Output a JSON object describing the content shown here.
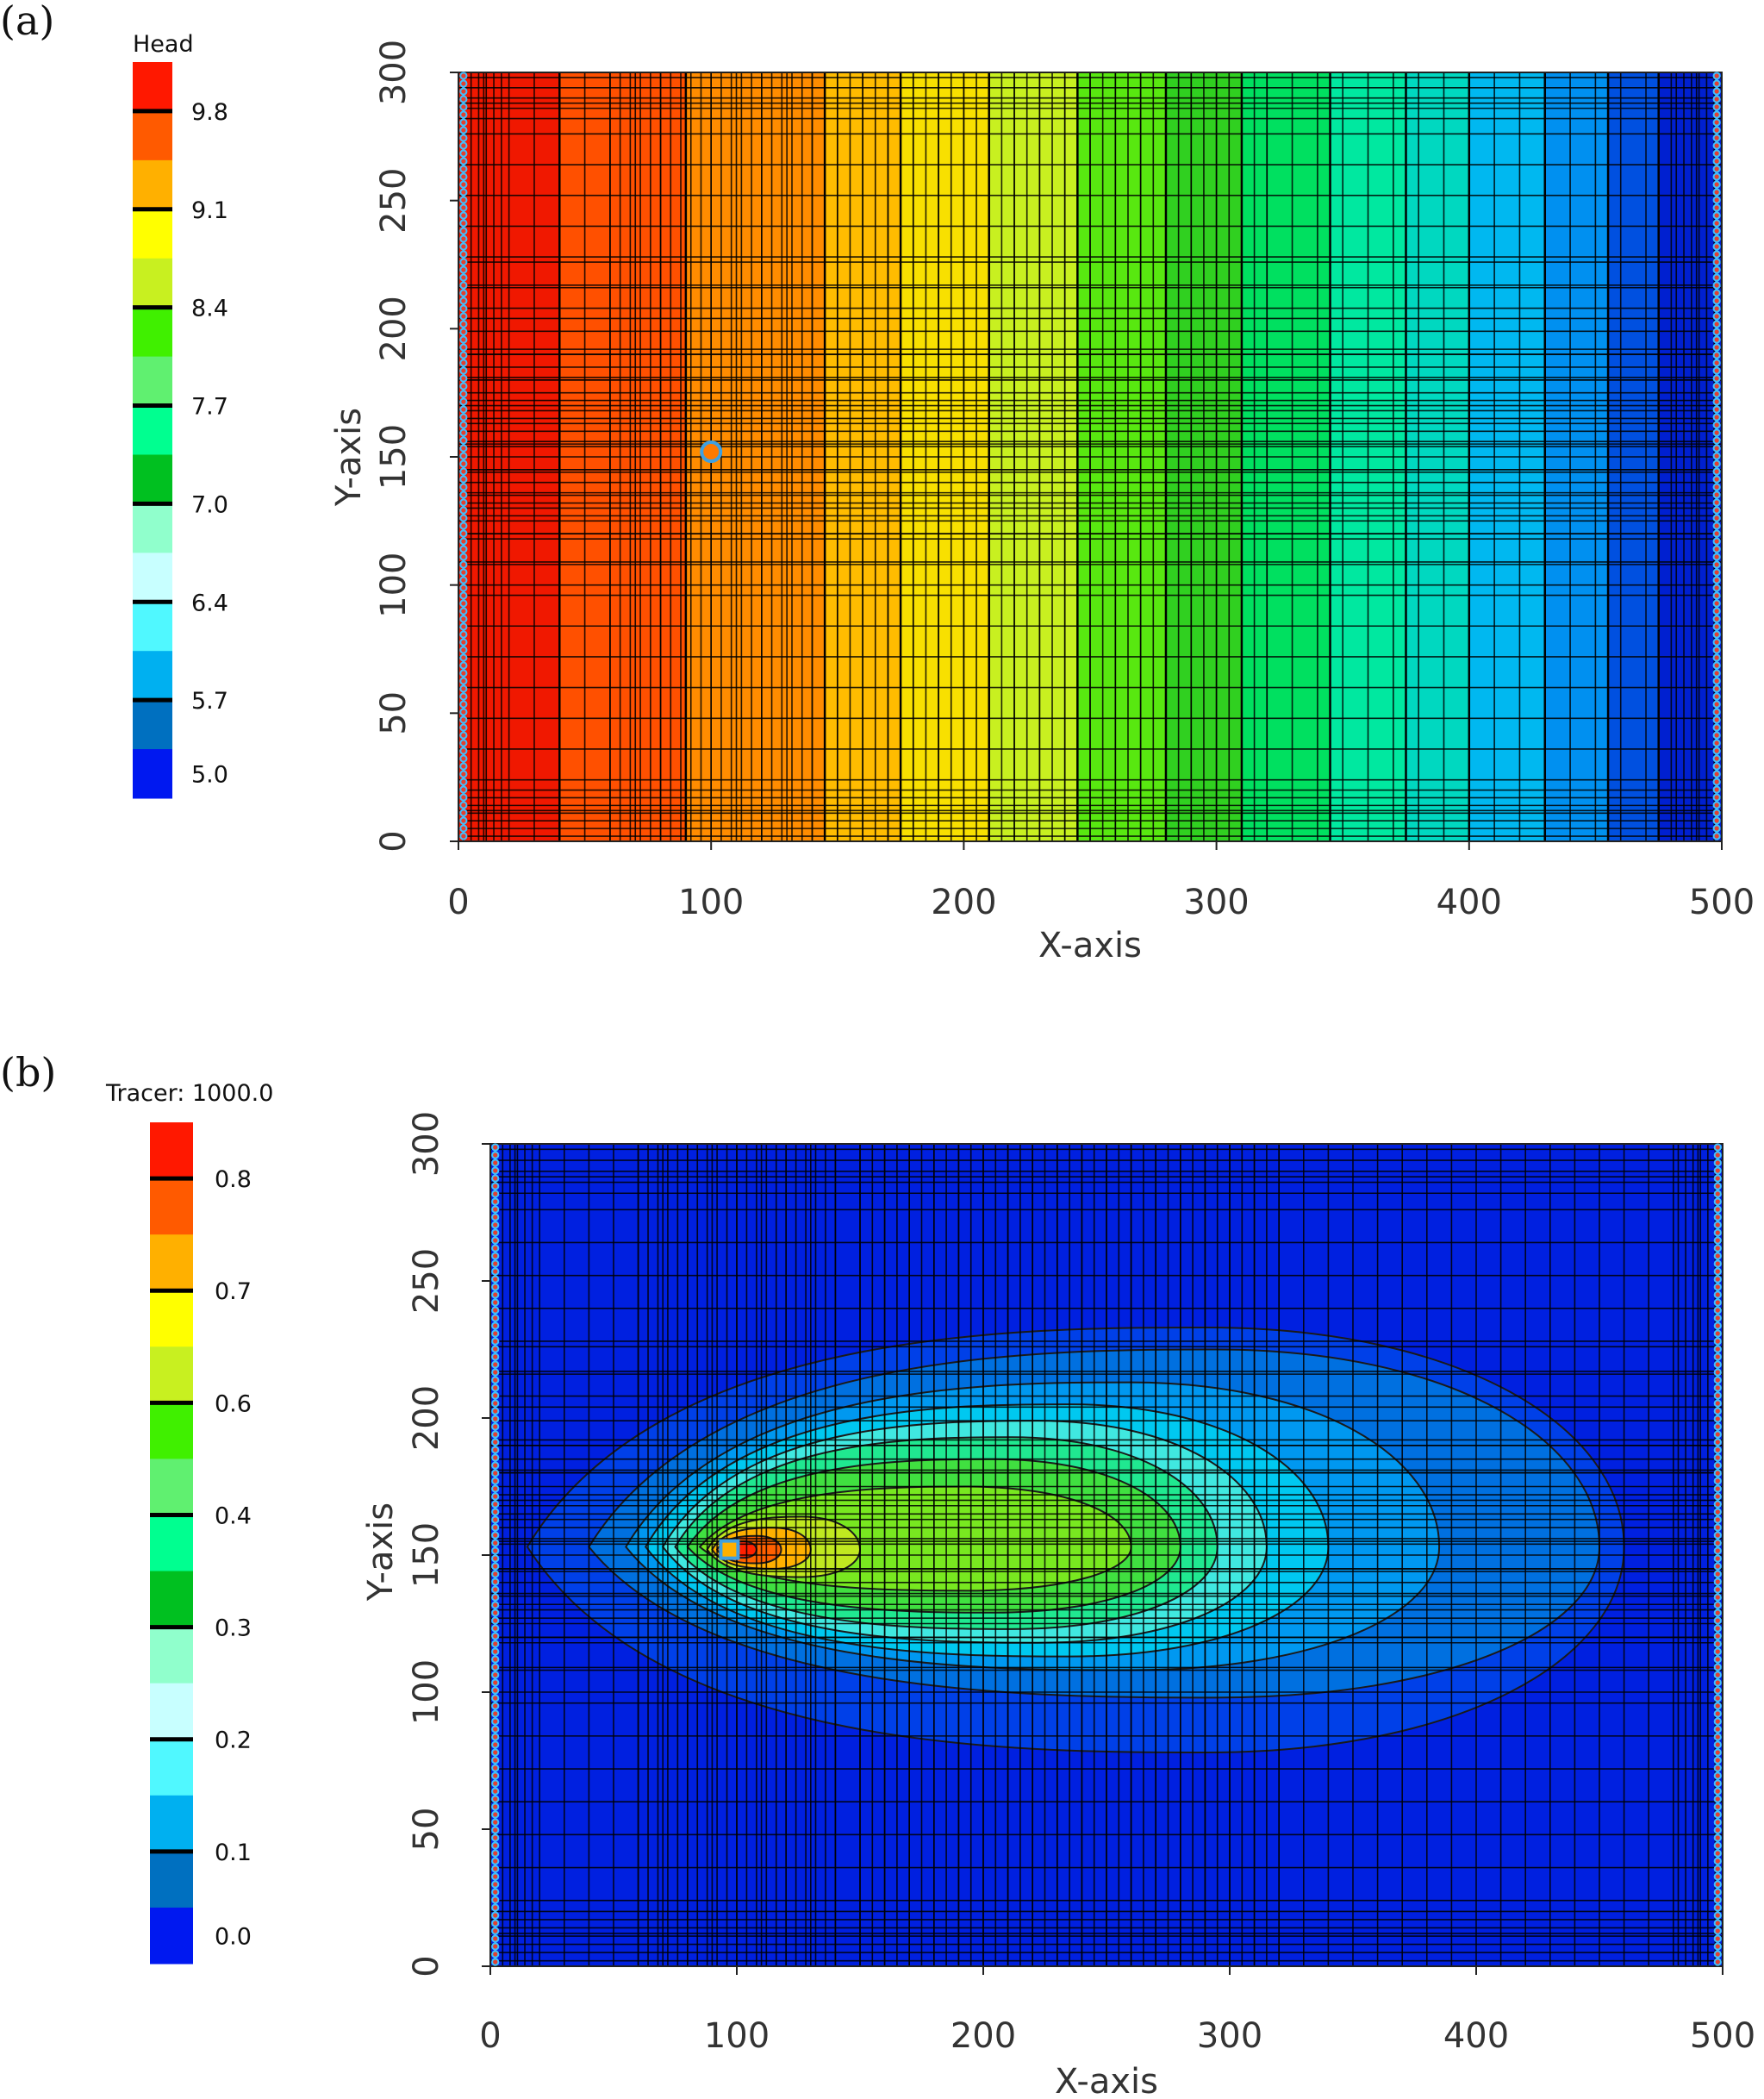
{
  "chart_data": [
    {
      "panel_label": "(a)",
      "type": "heatmap",
      "title": "",
      "colorbar_title": "Head",
      "colorbar_labels": [
        "9.8",
        "9.1",
        "8.4",
        "7.7",
        "7.0",
        "6.4",
        "5.7",
        "5.0"
      ],
      "colorbar_colors": [
        "#ff1800",
        "#ff5a00",
        "#ffb000",
        "#ffff00",
        "#c8f020",
        "#40f000",
        "#60f070",
        "#00ff90",
        "#00c020",
        "#90ffcc",
        "#c8ffff",
        "#50f8ff",
        "#00b0f0",
        "#0070c0",
        "#0018f0"
      ],
      "xlabel": "X-axis",
      "ylabel": "Y-axis",
      "xlim": [
        0,
        500
      ],
      "ylim": [
        0,
        300
      ],
      "xticks": [
        "0",
        "100",
        "200",
        "300",
        "400",
        "500"
      ],
      "yticks": [
        "0",
        "50",
        "100",
        "150",
        "200",
        "250",
        "300"
      ],
      "band_breaks_x": [
        40,
        90,
        145,
        175,
        210,
        245,
        280,
        310,
        345,
        375,
        400,
        430,
        455,
        475
      ],
      "band_colors": [
        "#f01800",
        "#ff5000",
        "#ff8c00",
        "#ffbc00",
        "#f8e000",
        "#c8f020",
        "#58e810",
        "#30d020",
        "#00e060",
        "#00e8a0",
        "#00d8c0",
        "#00b8f0",
        "#0090f0",
        "#0050e0",
        "#0020d0"
      ],
      "well": {
        "x": 100,
        "y": 152
      }
    },
    {
      "panel_label": "(b)",
      "type": "heatmap",
      "title": "",
      "colorbar_title": "Tracer: 1000.0",
      "colorbar_labels": [
        "0.8",
        "0.7",
        "0.6",
        "0.4",
        "0.3",
        "0.2",
        "0.1",
        "0.0"
      ],
      "colorbar_colors": [
        "#ff1800",
        "#ff5a00",
        "#ffb000",
        "#ffff00",
        "#c8f020",
        "#40f000",
        "#60f070",
        "#00ff90",
        "#00c020",
        "#90ffcc",
        "#c8ffff",
        "#50f8ff",
        "#00b0f0",
        "#0070c0",
        "#0018f0"
      ],
      "xlabel": "X-axis",
      "ylabel": "Y-axis",
      "xlim": [
        0,
        500
      ],
      "ylim": [
        0,
        300
      ],
      "xticks": [
        "0",
        "100",
        "200",
        "300",
        "400",
        "500"
      ],
      "yticks": [
        "0",
        "50",
        "100",
        "150",
        "200",
        "250",
        "300"
      ],
      "background_color": "#0020e0",
      "plume_levels": [
        {
          "color": "#0040e8",
          "x0": 15,
          "x1": 460,
          "y_center": 153,
          "up": 80,
          "down": 75
        },
        {
          "color": "#0070e0",
          "x0": 40,
          "x1": 450,
          "y_center": 153,
          "up": 72,
          "down": 55
        },
        {
          "color": "#0098f0",
          "x0": 55,
          "x1": 385,
          "y_center": 153,
          "up": 60,
          "down": 45
        },
        {
          "color": "#00c8f0",
          "x0": 63,
          "x1": 340,
          "y_center": 153,
          "up": 52,
          "down": 40
        },
        {
          "color": "#40e8e0",
          "x0": 70,
          "x1": 315,
          "y_center": 153,
          "up": 46,
          "down": 35
        },
        {
          "color": "#20e890",
          "x0": 75,
          "x1": 295,
          "y_center": 153,
          "up": 40,
          "down": 30
        },
        {
          "color": "#40e040",
          "x0": 80,
          "x1": 280,
          "y_center": 153,
          "up": 32,
          "down": 24
        },
        {
          "color": "#78e820",
          "x0": 85,
          "x1": 260,
          "y_center": 153,
          "up": 22,
          "down": 16
        },
        {
          "color": "#c0e820",
          "x0": 88,
          "x1": 150,
          "y_center": 152,
          "up": 12,
          "down": 10
        },
        {
          "color": "#ffb000",
          "x0": 90,
          "x1": 130,
          "y_center": 152,
          "up": 8,
          "down": 7
        },
        {
          "color": "#ff6000",
          "x0": 92,
          "x1": 118,
          "y_center": 152,
          "up": 5,
          "down": 5
        },
        {
          "color": "#ff2000",
          "x0": 94,
          "x1": 108,
          "y_center": 152,
          "up": 3,
          "down": 3
        }
      ],
      "well": {
        "x": 97,
        "y": 152
      }
    }
  ]
}
